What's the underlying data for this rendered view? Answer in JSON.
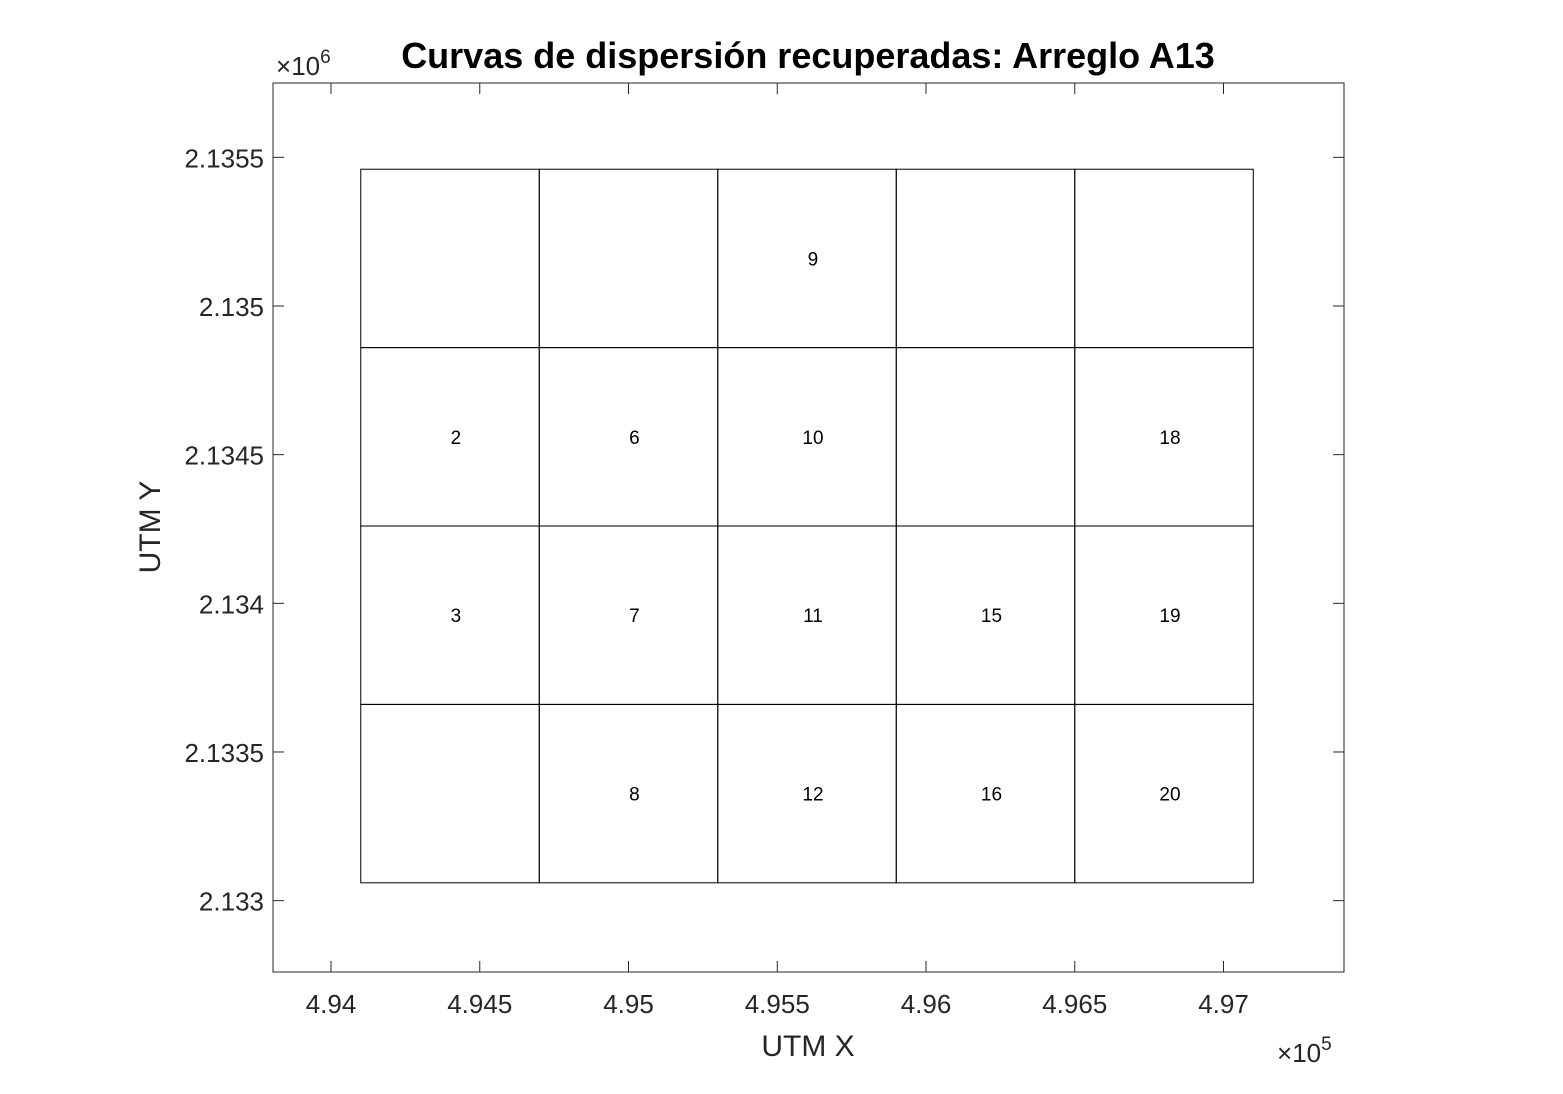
{
  "chart_data": {
    "type": "grid-map",
    "title": "Curvas de dispersión recuperadas: Arreglo A13",
    "xlabel": "UTM X",
    "ylabel": "UTM Y",
    "x_multiplier": {
      "base": "10",
      "exponent": "5"
    },
    "y_multiplier": {
      "base": "10",
      "exponent": "6"
    },
    "xlim": [
      493805,
      497405
    ],
    "ylim": [
      2132760,
      2135750
    ],
    "x_ticks": [
      494000,
      494500,
      495000,
      495500,
      496000,
      496500,
      497000
    ],
    "x_tick_labels": [
      "4.94",
      "4.945",
      "4.95",
      "4.955",
      "4.96",
      "4.965",
      "4.97"
    ],
    "y_ticks": [
      2133000,
      2133500,
      2134000,
      2134500,
      2135000,
      2135500
    ],
    "y_tick_labels": [
      "2.133",
      "2.1335",
      "2.134",
      "2.1345",
      "2.135",
      "2.1355"
    ],
    "grid_x_edges": [
      494100,
      494700,
      495300,
      495900,
      496500,
      497100
    ],
    "grid_y_edges": [
      2133060,
      2133660,
      2134260,
      2134860,
      2135460
    ],
    "cells": [
      {
        "label": "9",
        "x": 495620,
        "y": 2135160
      },
      {
        "label": "2",
        "x": 494420,
        "y": 2134560
      },
      {
        "label": "6",
        "x": 495020,
        "y": 2134560
      },
      {
        "label": "10",
        "x": 495620,
        "y": 2134560
      },
      {
        "label": "18",
        "x": 496820,
        "y": 2134560
      },
      {
        "label": "3",
        "x": 494420,
        "y": 2133960
      },
      {
        "label": "7",
        "x": 495020,
        "y": 2133960
      },
      {
        "label": "11",
        "x": 495620,
        "y": 2133960
      },
      {
        "label": "15",
        "x": 496220,
        "y": 2133960
      },
      {
        "label": "19",
        "x": 496820,
        "y": 2133960
      },
      {
        "label": "8",
        "x": 495020,
        "y": 2133360
      },
      {
        "label": "12",
        "x": 495620,
        "y": 2133360
      },
      {
        "label": "16",
        "x": 496220,
        "y": 2133360
      },
      {
        "label": "20",
        "x": 496820,
        "y": 2133360
      }
    ],
    "grid": false,
    "colors": {
      "axis": "#262626",
      "cells": "#000000",
      "background": "#ffffff"
    }
  }
}
